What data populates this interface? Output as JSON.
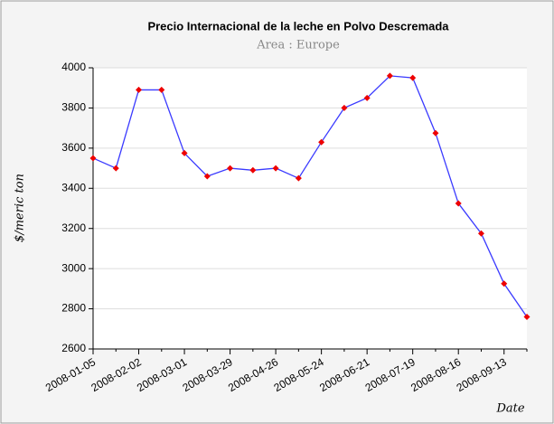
{
  "chart_data": {
    "type": "line",
    "title": "Precio Internacional de la leche en Polvo Descremada",
    "subtitle": "Area : Europe",
    "y_label": "$/meric ton",
    "x_label": "Date",
    "categories": [
      "2008-01-05",
      null,
      "2008-02-02",
      null,
      "2008-03-01",
      null,
      "2008-03-29",
      null,
      "2008-04-26",
      null,
      "2008-05-24",
      null,
      "2008-06-21",
      null,
      "2008-07-19",
      null,
      "2008-08-16",
      null,
      "2008-09-13",
      null
    ],
    "series": [
      {
        "name": "Precio",
        "color": "#3a3aff",
        "marker_color": "#ee0000",
        "values": [
          3550,
          3500,
          3890,
          3890,
          3575,
          3460,
          3500,
          3490,
          3500,
          3450,
          3630,
          3800,
          3850,
          3960,
          3950,
          3675,
          3325,
          3175,
          2925,
          2760
        ]
      }
    ],
    "ylim": [
      2600,
      4000
    ],
    "yticks": [
      2600,
      2800,
      3000,
      3200,
      3400,
      3600,
      3800,
      4000
    ],
    "grid": true
  }
}
